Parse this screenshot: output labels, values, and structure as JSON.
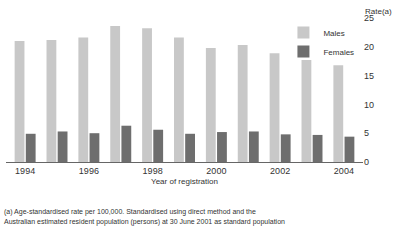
{
  "chart_data": {
    "type": "bar",
    "x_label": "Year of registration",
    "y_label": "Rate(a)",
    "categories": [
      "1994",
      null,
      "1996",
      null,
      "1998",
      null,
      "2000",
      null,
      "2002",
      null,
      "2004"
    ],
    "series": [
      {
        "name": "Males",
        "color": "#c8c8c8",
        "values": [
          21.0,
          21.2,
          21.6,
          23.6,
          23.2,
          21.6,
          19.8,
          20.3,
          18.9,
          17.7,
          16.8
        ]
      },
      {
        "name": "Females",
        "color": "#6e6e6e",
        "values": [
          4.9,
          5.3,
          5.0,
          6.3,
          5.6,
          4.9,
          5.2,
          5.3,
          4.8,
          4.7,
          4.4
        ]
      }
    ],
    "ylim": [
      0,
      25
    ],
    "yticks": [
      0,
      5,
      10,
      15,
      20,
      25
    ],
    "grid": false,
    "legend": "upper right",
    "annotations": [
      "(a) Age-standardised rate per 100,000. Standardised using direct method and the",
      "Australian estimated resident population (persons) at 30 June 2001 as standard population"
    ]
  }
}
